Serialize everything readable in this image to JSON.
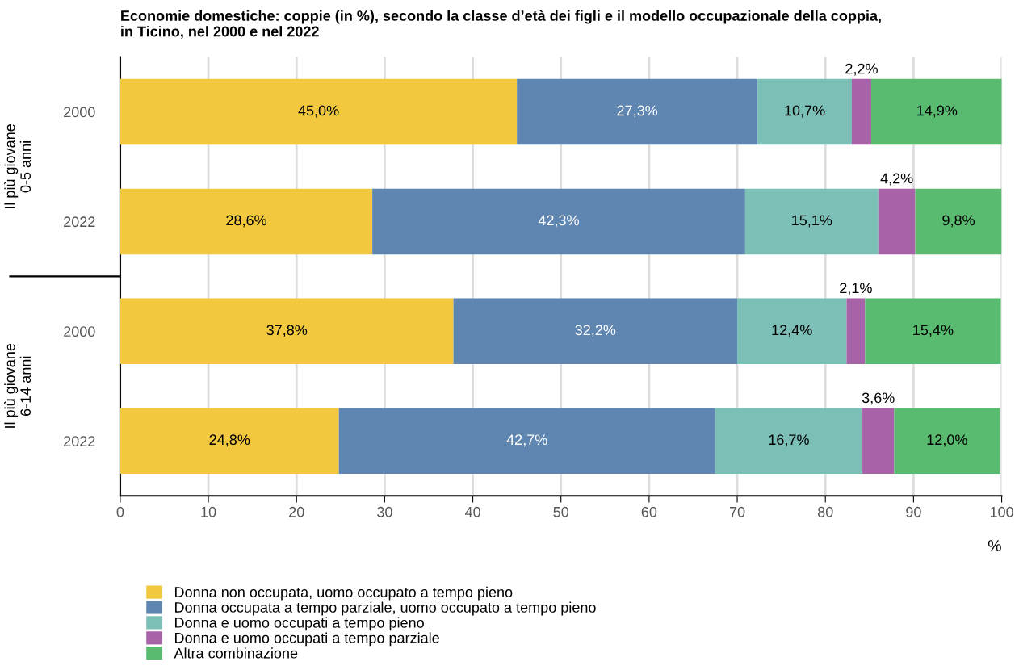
{
  "chart_data": {
    "type": "bar",
    "orientation": "horizontal",
    "stacked": true,
    "title": "Economie domestiche: coppie (in %), secondo la classe d’età dei figli e il modello occupazionale della coppia,\nin Ticino, nel 2000 e nel 2022",
    "xlabel": "%",
    "categories": [
      "2000",
      "2022",
      "2000",
      "2022"
    ],
    "annotations": [
      "Il più giovane\n0-5 anni",
      "Il più giovane\n6-14 anni"
    ],
    "series": [
      {
        "name": "Donna non occupata, uomo occupato a tempo pieno",
        "color": "#f2c93e",
        "values": [
          45.0,
          28.6,
          37.8,
          24.8
        ],
        "value_labels": [
          "45,0%",
          "28,6%",
          "37,8%",
          "24,8%"
        ]
      },
      {
        "name": "Donna occupata a tempo parziale, uomo occupato a tempo pieno",
        "color": "#5f86b0",
        "values": [
          27.3,
          42.3,
          32.2,
          42.7
        ],
        "value_labels": [
          "27,3%",
          "42,3%",
          "32,2%",
          "42,7%"
        ]
      },
      {
        "name": "Donna e uomo occupati a tempo pieno",
        "color": "#7bbfb7",
        "values": [
          10.7,
          15.1,
          12.4,
          16.7
        ],
        "value_labels": [
          "10,7%",
          "15,1%",
          "12,4%",
          "16,7%"
        ]
      },
      {
        "name": "Donna e uomo occupati a tempo parziale",
        "color": "#a862a8",
        "values": [
          2.2,
          4.2,
          2.1,
          3.6
        ],
        "value_labels": [
          "2,2%",
          "4,2%",
          "2,1%",
          "3,6%"
        ]
      },
      {
        "name": "Altra combinazione",
        "color": "#59bb6f",
        "values": [
          14.9,
          9.8,
          15.4,
          12.0
        ],
        "value_labels": [
          "14,9%",
          "9,8%",
          "15,4%",
          "12,0%"
        ]
      }
    ],
    "xlim": [
      0,
      100
    ],
    "xticks": [
      0,
      10,
      20,
      30,
      40,
      50,
      60,
      70,
      80,
      90,
      100
    ],
    "grid": "x",
    "legend": "bottom left"
  }
}
